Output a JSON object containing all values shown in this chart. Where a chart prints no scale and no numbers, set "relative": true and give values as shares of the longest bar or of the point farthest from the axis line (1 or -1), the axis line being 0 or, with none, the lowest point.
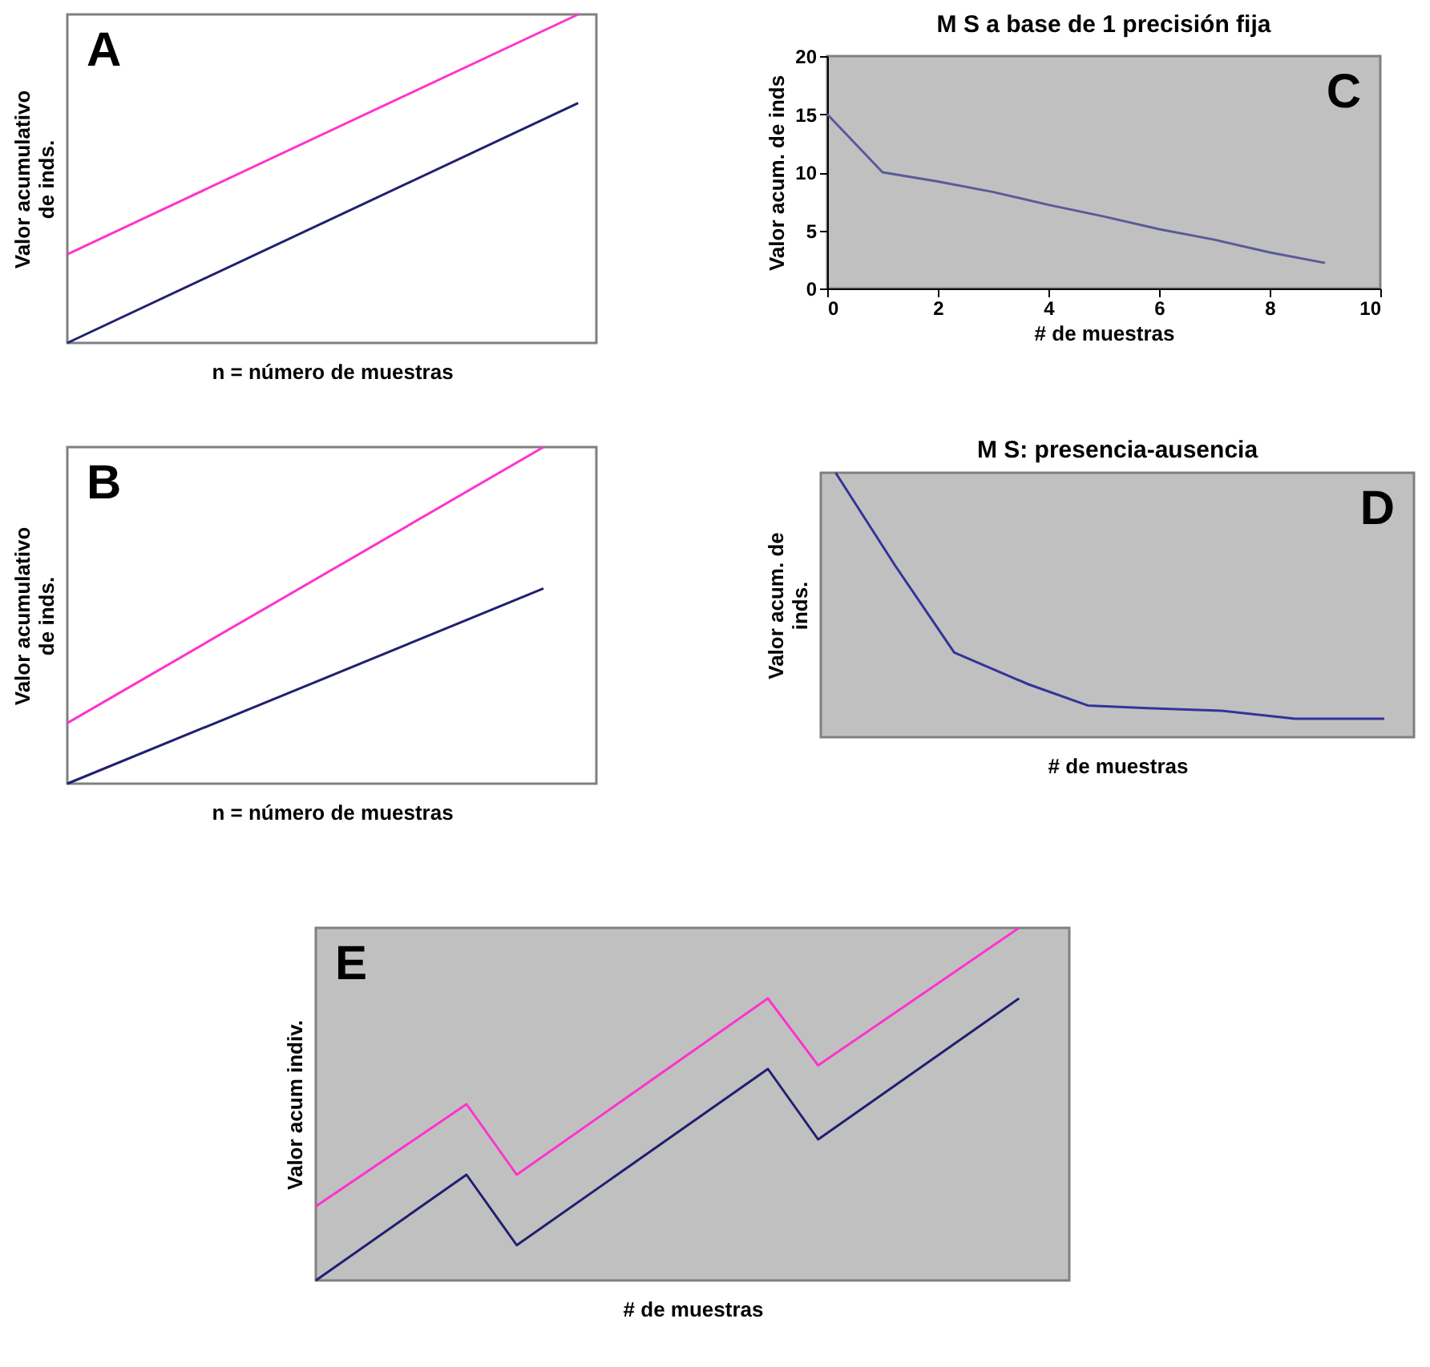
{
  "chart_data": [
    {
      "type": "line",
      "relative": true,
      "xlabel": "n = número de muestras",
      "ylabel": "Valor acumulativo de inds.",
      "annotations": [
        "A"
      ],
      "categories": [
        null,
        null,
        null,
        null,
        null,
        null,
        null,
        null,
        null,
        null,
        null,
        null,
        null,
        null,
        null,
        null,
        null,
        null,
        null,
        null,
        null,
        null,
        null,
        null,
        null,
        null,
        null,
        null,
        null,
        null
      ],
      "series": [
        {
          "color": "#ff33cc",
          "values": [
            0.27,
            null,
            null,
            null,
            null,
            null,
            null,
            null,
            null,
            null,
            null,
            null,
            null,
            null,
            null,
            null,
            null,
            null,
            null,
            null,
            null,
            null,
            null,
            null,
            null,
            null,
            null,
            null,
            1,
            null
          ]
        },
        {
          "color": "#202070",
          "values": [
            0,
            null,
            null,
            null,
            null,
            null,
            null,
            null,
            null,
            null,
            null,
            null,
            null,
            null,
            null,
            null,
            null,
            null,
            null,
            null,
            null,
            null,
            null,
            null,
            null,
            null,
            null,
            null,
            0.73,
            null
          ]
        }
      ]
    },
    {
      "type": "line",
      "title": "M S a base de 1 precisión fija",
      "xlabel": "# de muestras",
      "ylabel": "Valor acum. de inds",
      "annotations": [
        "C"
      ],
      "x": [
        0,
        1,
        2,
        3,
        4,
        5,
        6,
        7,
        8,
        9
      ],
      "xlim": [
        0,
        10
      ],
      "xticks": [
        0,
        2,
        4,
        6,
        8,
        10
      ],
      "ylim": [
        0,
        20
      ],
      "yticks": [
        0,
        5,
        10,
        15,
        20
      ],
      "series": [
        {
          "color": "#5a5a9a",
          "values": [
            15,
            10,
            9.2,
            8.3,
            7.2,
            6.2,
            5.1,
            4.2,
            3.1,
            2.2
          ]
        }
      ]
    },
    {
      "type": "line",
      "relative": true,
      "xlabel": "n = número de muestras",
      "ylabel": "Valor acumulativo de inds.",
      "annotations": [
        "B"
      ],
      "categories": [
        null,
        null,
        null,
        null,
        null,
        null,
        null,
        null,
        null,
        null,
        null
      ],
      "series": [
        {
          "color": "#ff33cc",
          "values": [
            0.18,
            null,
            null,
            null,
            null,
            null,
            null,
            null,
            null,
            1,
            null
          ]
        },
        {
          "color": "#202070",
          "values": [
            0,
            null,
            null,
            null,
            null,
            null,
            null,
            null,
            null,
            0.58,
            null
          ]
        }
      ]
    },
    {
      "type": "line",
      "relative": true,
      "title": "M S: presencia-ausencia",
      "xlabel": "# de muestras",
      "ylabel": "Valor acum. de inds.",
      "annotations": [
        "D"
      ],
      "categories": [
        null,
        null,
        null,
        null,
        null,
        null,
        null,
        null,
        null,
        null,
        null,
        null,
        null,
        null,
        null,
        null,
        null,
        null,
        null,
        null,
        null,
        null,
        null,
        null,
        null,
        null,
        null,
        null,
        null,
        null,
        null,
        null,
        null,
        null,
        null,
        null,
        null,
        null,
        null,
        null,
        null
      ],
      "series": [
        {
          "color": "#333399",
          "values": [
            null,
            1,
            null,
            null,
            null,
            0.65,
            null,
            null,
            null,
            0.32,
            null,
            null,
            null,
            null,
            0.2,
            null,
            null,
            null,
            0.12,
            null,
            null,
            null,
            0.11,
            null,
            null,
            null,
            null,
            0.1,
            null,
            null,
            null,
            null,
            0.07,
            null,
            null,
            null,
            null,
            null,
            0.07,
            null,
            null
          ]
        }
      ]
    },
    {
      "type": "line",
      "relative": true,
      "xlabel": "# de muestras",
      "ylabel": "Valor acum indiv.",
      "annotations": [
        "E"
      ],
      "categories": [
        null,
        null,
        null,
        null,
        null,
        null,
        null,
        null,
        null,
        null,
        null,
        null,
        null,
        null,
        null,
        null
      ],
      "series": [
        {
          "color": "#ff33cc",
          "values": [
            0.21,
            null,
            null,
            0.5,
            0.3,
            null,
            null,
            null,
            null,
            0.8,
            0.61,
            null,
            null,
            null,
            1,
            null
          ]
        },
        {
          "color": "#202070",
          "values": [
            0,
            null,
            null,
            0.3,
            0.1,
            null,
            null,
            null,
            null,
            0.6,
            0.4,
            null,
            null,
            null,
            0.8,
            null
          ]
        }
      ]
    }
  ]
}
